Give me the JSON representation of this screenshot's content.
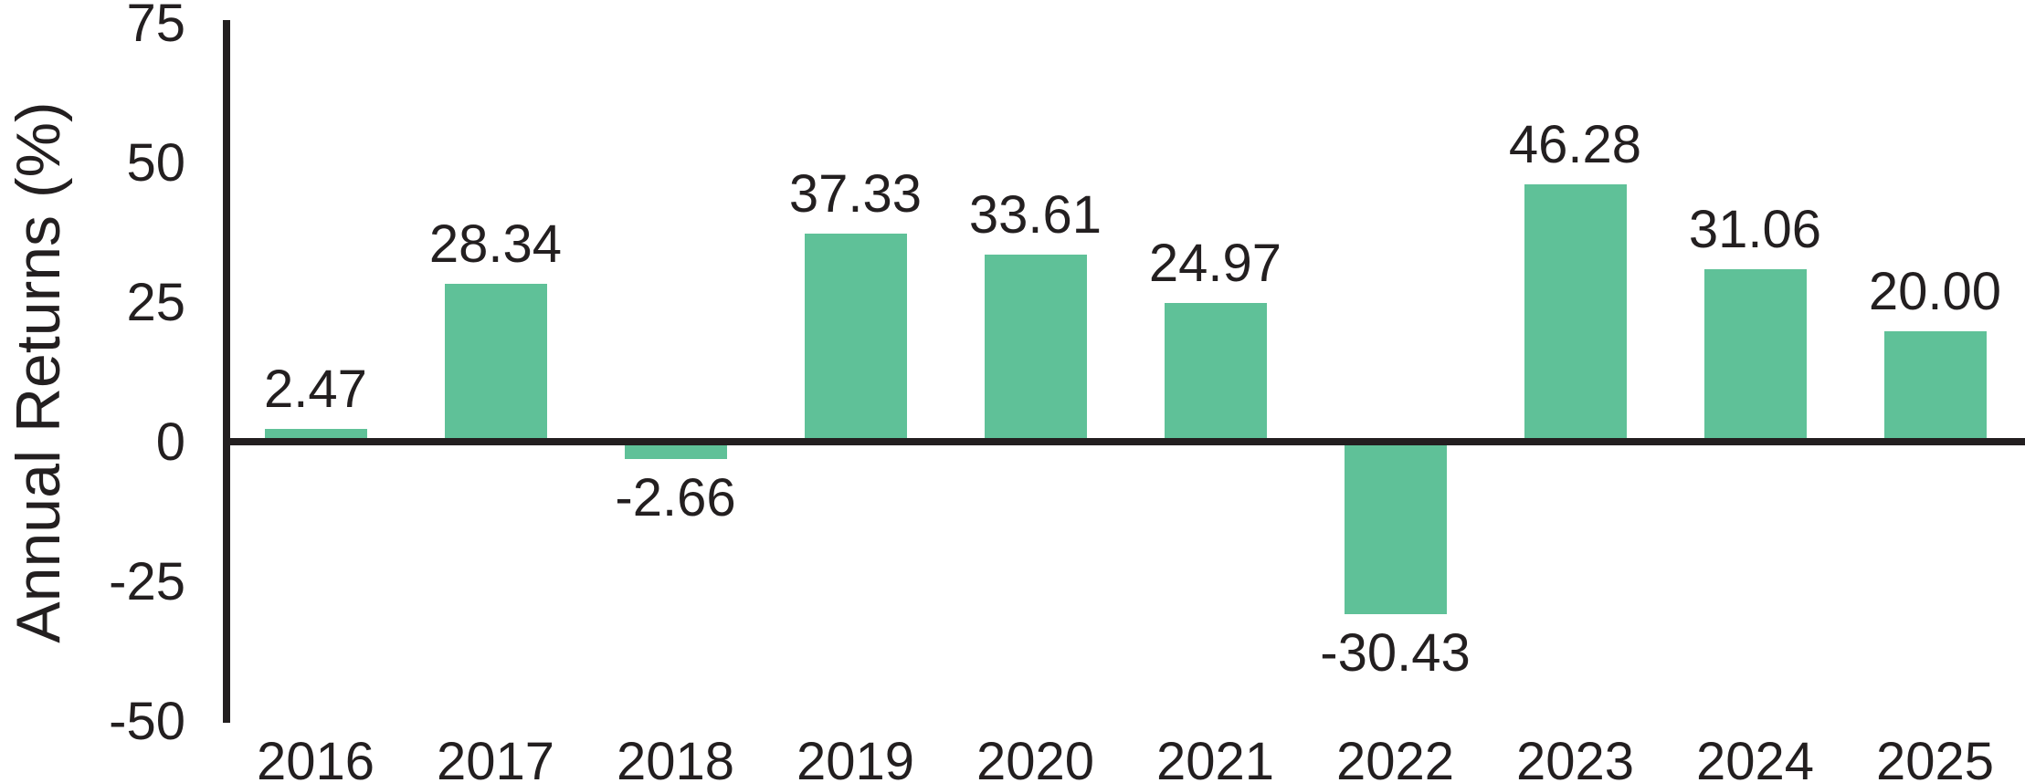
{
  "chart_data": {
    "type": "bar",
    "categories": [
      "2016",
      "2017",
      "2018",
      "2019",
      "2020",
      "2021",
      "2022",
      "2023",
      "2024",
      "2025"
    ],
    "values": [
      2.47,
      28.34,
      -2.66,
      37.33,
      33.61,
      24.97,
      -30.43,
      46.28,
      31.06,
      20.0
    ],
    "value_labels": [
      "2.47",
      "28.34",
      "-2.66",
      "37.33",
      "33.61",
      "24.97",
      "-30.43",
      "46.28",
      "31.06",
      "20.00"
    ],
    "title": "",
    "xlabel": "",
    "ylabel": "Annual Returns (%)",
    "ylim": [
      -50,
      75
    ],
    "yticks": [
      75,
      50,
      25,
      0,
      -25,
      -50
    ],
    "ytick_labels": [
      "75",
      "50",
      "25",
      "0",
      "-25",
      "-50"
    ],
    "grid": false,
    "legend": "none",
    "bar_color": "#5FC198",
    "axis_color": "#231F20",
    "text_color": "#231F20"
  }
}
